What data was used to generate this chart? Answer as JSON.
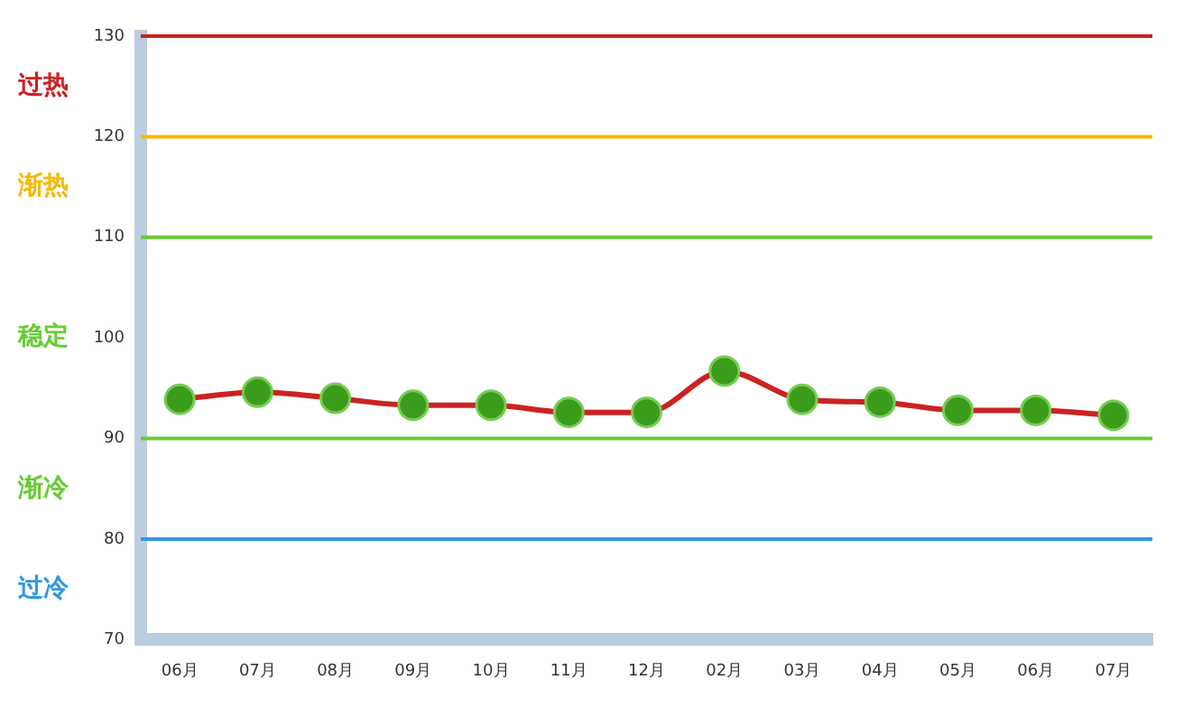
{
  "chart_data": {
    "type": "line",
    "categories": [
      "06月",
      "07月",
      "08月",
      "09月",
      "10月",
      "11月",
      "12月",
      "02月",
      "03月",
      "04月",
      "05月",
      "06月",
      "07月"
    ],
    "series": [
      {
        "color": "#cc2222",
        "values": [
          93.9,
          94.6,
          94.0,
          93.3,
          93.3,
          92.6,
          92.6,
          96.7,
          93.9,
          93.6,
          92.8,
          92.8,
          92.3
        ]
      }
    ],
    "ylim": [
      70,
      130
    ],
    "yticks": [
      70,
      80,
      90,
      100,
      110,
      120,
      130
    ],
    "grid": false,
    "legend": false,
    "marker": "circle",
    "line_style": "solid",
    "ref_lines": [
      {
        "axis": "y",
        "value": 130,
        "color": "#cc2222"
      },
      {
        "axis": "y",
        "value": 120,
        "color": "#f5b800"
      },
      {
        "axis": "y",
        "value": 110,
        "color": "#66cc33"
      },
      {
        "axis": "y",
        "value": 90,
        "color": "#66cc33"
      },
      {
        "axis": "y",
        "value": 80,
        "color": "#3399dd"
      }
    ],
    "annotations": [
      "过热",
      "渐热",
      "稳定",
      "渐冷",
      "过冷"
    ]
  }
}
